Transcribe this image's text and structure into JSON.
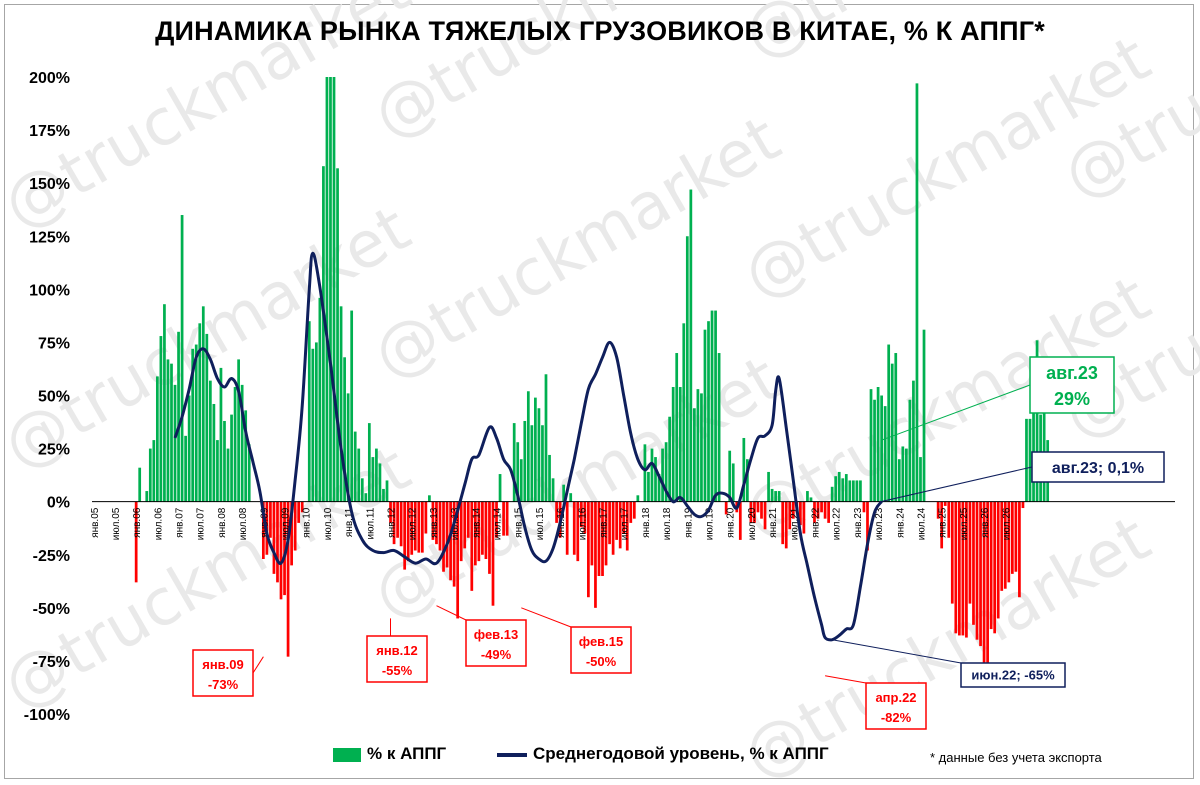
{
  "chart_data": {
    "type": "bar+line",
    "title": "ДИНАМИКА РЫНКА ТЯЖЕЛЫХ ГРУЗОВИКОВ В КИТАЕ, % К АППГ*",
    "footnote": "* данные без учета экспорта",
    "watermark": "@truckmarket",
    "ylim": [
      -100,
      200
    ],
    "yticks": [
      "200%",
      "175%",
      "150%",
      "125%",
      "100%",
      "75%",
      "50%",
      "25%",
      "0%",
      "-25%",
      "-50%",
      "-75%",
      "-100%"
    ],
    "ytick_values": [
      200,
      175,
      150,
      125,
      100,
      75,
      50,
      25,
      0,
      -25,
      -50,
      -75,
      -100
    ],
    "xticks": [
      "янв.05",
      "июл.05",
      "янв.06",
      "июл.06",
      "янв.07",
      "июл.07",
      "янв.08",
      "июл.08",
      "янв.09",
      "июл.09",
      "янв.10",
      "июл.10",
      "янв.11",
      "июл.11",
      "янв.12",
      "июл.12",
      "янв.13",
      "июл.13",
      "янв.14",
      "июл.14",
      "янв.15",
      "июл.15",
      "янв.16",
      "июл.16",
      "янв.17",
      "июл.17",
      "янв.18",
      "июл.18",
      "янв.19",
      "июл.19",
      "янв.20",
      "июл.20",
      "янв.21",
      "июл.21",
      "янв.22",
      "июл.22",
      "янв.23",
      "июл.23",
      "янв.24",
      "июл.24",
      "янв.25",
      "июл.25",
      "янв.26",
      "июл.26"
    ],
    "series": [
      {
        "name": "% к АППГ",
        "type": "bar",
        "color_positive": "#00b050",
        "color_negative": "#ff0000",
        "start": "янв.05",
        "values": [
          0,
          0,
          0,
          0,
          0,
          0,
          0,
          0,
          0,
          0,
          0,
          0,
          -38,
          16,
          0,
          5,
          25,
          29,
          59,
          78,
          93,
          67,
          65,
          55,
          80,
          135,
          31,
          50,
          72,
          74,
          84,
          92,
          79,
          57,
          46,
          29,
          63,
          38,
          25,
          41,
          54,
          67,
          55,
          43,
          27,
          0,
          0,
          0,
          -27,
          -25,
          -17,
          -34,
          -38,
          -46,
          -44,
          -73,
          -30,
          -23,
          -10,
          -5,
          0,
          85,
          72,
          75,
          96,
          158,
          200,
          200,
          200,
          157,
          92,
          68,
          51,
          90,
          33,
          25,
          11,
          4,
          37,
          21,
          25,
          18,
          6,
          10,
          -10,
          -20,
          -17,
          -21,
          -32,
          -28,
          -25,
          -23,
          -24,
          -24,
          -15,
          3,
          -18,
          -20,
          -23,
          -33,
          -31,
          -37,
          -40,
          -55,
          -28,
          -22,
          -17,
          -42,
          -30,
          -28,
          -25,
          -27,
          -34,
          -49,
          -17,
          13,
          -16,
          -16,
          0,
          37,
          28,
          20,
          38,
          52,
          36,
          49,
          44,
          36,
          60,
          22,
          11,
          -10,
          -17,
          8,
          -25,
          4,
          -25,
          -28,
          -12,
          -15,
          -45,
          -30,
          -50,
          -35,
          -35,
          -30,
          -20,
          -25,
          -18,
          -22,
          -15,
          -23,
          -10,
          -8,
          3,
          0,
          27,
          14,
          25,
          21,
          13,
          25,
          28,
          40,
          54,
          70,
          54,
          84,
          125,
          147,
          44,
          53,
          51,
          81,
          85,
          90,
          90,
          70,
          0,
          -6,
          24,
          18,
          -5,
          -18,
          30,
          20,
          -10,
          -10,
          -5,
          -8,
          -13,
          14,
          6,
          5,
          5,
          -20,
          -22,
          -13,
          -8,
          -5,
          -11,
          -15,
          5,
          2,
          -10,
          -8,
          -5,
          -8,
          -10,
          7,
          12,
          14,
          11,
          13,
          10,
          10,
          10,
          10,
          -5,
          -23,
          53,
          48,
          54,
          50,
          45,
          74,
          65,
          70,
          20,
          26,
          25,
          48,
          57,
          197,
          21,
          81,
          0,
          0,
          0,
          -8,
          -22,
          -2,
          -17,
          -48,
          -62,
          -63,
          -63,
          -64,
          -48,
          -58,
          -65,
          -68,
          -78,
          -82,
          -60,
          -62,
          -55,
          -42,
          -41,
          -38,
          -34,
          -33,
          -45,
          -3,
          39,
          39,
          44,
          76,
          41,
          44,
          29
        ]
      },
      {
        "name": "Среднегодовой уровень, % к АППГ",
        "type": "line",
        "color": "#0f1f5c",
        "points": [
          [
            "дек.06",
            30
          ],
          [
            "фев.07",
            40
          ],
          [
            "апр.07",
            53
          ],
          [
            "июн.07",
            68
          ],
          [
            "авг.07",
            72
          ],
          [
            "окт.07",
            67
          ],
          [
            "дек.07",
            58
          ],
          [
            "фев.08",
            54
          ],
          [
            "апр.08",
            58
          ],
          [
            "июн.08",
            52
          ],
          [
            "авг.08",
            33
          ],
          [
            "окт.08",
            19
          ],
          [
            "дек.08",
            5
          ],
          [
            "фев.09",
            -15
          ],
          [
            "апр.09",
            -24
          ],
          [
            "июн.09",
            -29
          ],
          [
            "авг.09",
            -18
          ],
          [
            "окт.09",
            10
          ],
          [
            "дек.09",
            45
          ],
          [
            "фев.10",
            100
          ],
          [
            "мар.10",
            117
          ],
          [
            "май.10",
            101
          ],
          [
            "авг.10",
            65
          ],
          [
            "ноя.10",
            25
          ],
          [
            "фев.11",
            -5
          ],
          [
            "май.11",
            -18
          ],
          [
            "авг.11",
            -23
          ],
          [
            "ноя.11",
            -24
          ],
          [
            "фев.12",
            -23
          ],
          [
            "май.12",
            -26
          ],
          [
            "авг.12",
            -29
          ],
          [
            "ноя.12",
            -27
          ],
          [
            "фев.13",
            -29
          ],
          [
            "май.13",
            -20
          ],
          [
            "июл.13",
            -10
          ],
          [
            "окт.13",
            8
          ],
          [
            "дек.13",
            20
          ],
          [
            "фев.14",
            22
          ],
          [
            "май.14",
            35
          ],
          [
            "июл.14",
            30
          ],
          [
            "сен.14",
            20
          ],
          [
            "ноя.14",
            15
          ],
          [
            "янв.15",
            3
          ],
          [
            "мар.15",
            -12
          ],
          [
            "май.15",
            -23
          ],
          [
            "июл.15",
            -27
          ],
          [
            "сен.15",
            -28
          ],
          [
            "ноя.15",
            -22
          ],
          [
            "янв.16",
            -10
          ],
          [
            "мар.16",
            5
          ],
          [
            "май.16",
            20
          ],
          [
            "июл.16",
            37
          ],
          [
            "сен.16",
            53
          ],
          [
            "ноя.16",
            60
          ],
          [
            "янв.17",
            68
          ],
          [
            "мар.17",
            75
          ],
          [
            "май.17",
            68
          ],
          [
            "июл.17",
            50
          ],
          [
            "сен.17",
            32
          ],
          [
            "ноя.17",
            20
          ],
          [
            "янв.18",
            15
          ],
          [
            "мар.18",
            18
          ],
          [
            "май.18",
            12
          ],
          [
            "июл.18",
            5
          ],
          [
            "сен.18",
            0
          ],
          [
            "ноя.18",
            2
          ],
          [
            "янв.19",
            -2
          ],
          [
            "мар.19",
            -6
          ],
          [
            "май.19",
            -7
          ],
          [
            "июл.19",
            -4
          ],
          [
            "сен.19",
            3
          ],
          [
            "ноя.19",
            4
          ],
          [
            "янв.20",
            2
          ],
          [
            "мар.20",
            -3
          ],
          [
            "май.20",
            8
          ],
          [
            "июл.20",
            20
          ],
          [
            "сен.20",
            30
          ],
          [
            "ноя.20",
            31
          ],
          [
            "янв.21",
            36
          ],
          [
            "фев.21",
            52
          ],
          [
            "мар.21",
            58
          ],
          [
            "май.21",
            35
          ],
          [
            "июл.21",
            10
          ],
          [
            "сен.21",
            -15
          ],
          [
            "ноя.21",
            -30
          ],
          [
            "янв.22",
            -45
          ],
          [
            "мар.22",
            -58
          ],
          [
            "апр.22",
            -64
          ],
          [
            "июн.22",
            -65
          ],
          [
            "авг.22",
            -63
          ],
          [
            "окт.22",
            -60
          ],
          [
            "дек.22",
            -58
          ],
          [
            "фев.23",
            -40
          ],
          [
            "апр.23",
            -20
          ],
          [
            "июн.23",
            -5
          ],
          [
            "авг.23",
            0.1
          ]
        ]
      }
    ],
    "annotations": [
      {
        "label": "янв.09",
        "value": "-73%",
        "color": "#ff0000",
        "at": "янв.09",
        "y": -73
      },
      {
        "label": "янв.12",
        "value": "-55%",
        "color": "#ff0000",
        "at": "янв.12",
        "y": -55
      },
      {
        "label": "фев.13",
        "value": "-49%",
        "color": "#ff0000",
        "at": "фев.13",
        "y": -49
      },
      {
        "label": "фев.15",
        "value": "-50%",
        "color": "#ff0000",
        "at": "фев.15",
        "y": -50
      },
      {
        "label": "апр.22",
        "value": "-82%",
        "color": "#ff0000",
        "at": "апр.22",
        "y": -82
      },
      {
        "label": "июн.22; -65%",
        "value": "",
        "color": "#0f1f5c",
        "at": "июн.22",
        "y": -65
      },
      {
        "label": "авг.23; 0,1%",
        "value": "",
        "color": "#0f1f5c",
        "at": "авг.23",
        "y": 0.1
      },
      {
        "label": "авг.23",
        "value": "29%",
        "color": "#00b050",
        "at": "авг.23",
        "y": 29
      }
    ],
    "legend": {
      "position": "bottom"
    },
    "grid": false
  }
}
